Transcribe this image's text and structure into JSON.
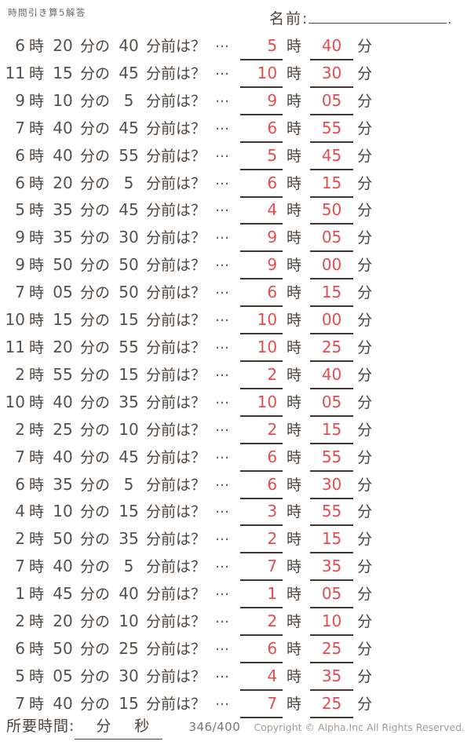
{
  "header": {
    "title": "時間引き算5解答",
    "name_label": "名前:",
    "name_suffix": "."
  },
  "labels": {
    "hour": "時",
    "min_no": "分の",
    "before": "分前は？",
    "ellipsis": "…",
    "minute": "分"
  },
  "colors": {
    "answer_red": "#e64b4e",
    "text_dark": "#4c443e",
    "line_dark": "#3e3731"
  },
  "problems": [
    {
      "h": "6",
      "m": "20",
      "d": "40",
      "ah": "5",
      "am": "40"
    },
    {
      "h": "11",
      "m": "15",
      "d": "45",
      "ah": "10",
      "am": "30"
    },
    {
      "h": "9",
      "m": "10",
      "d": "5",
      "ah": "9",
      "am": "05"
    },
    {
      "h": "7",
      "m": "40",
      "d": "45",
      "ah": "6",
      "am": "55"
    },
    {
      "h": "6",
      "m": "40",
      "d": "55",
      "ah": "5",
      "am": "45"
    },
    {
      "h": "6",
      "m": "20",
      "d": "5",
      "ah": "6",
      "am": "15"
    },
    {
      "h": "5",
      "m": "35",
      "d": "45",
      "ah": "4",
      "am": "50"
    },
    {
      "h": "9",
      "m": "35",
      "d": "30",
      "ah": "9",
      "am": "05"
    },
    {
      "h": "9",
      "m": "50",
      "d": "50",
      "ah": "9",
      "am": "00"
    },
    {
      "h": "7",
      "m": "05",
      "d": "50",
      "ah": "6",
      "am": "15"
    },
    {
      "h": "10",
      "m": "15",
      "d": "15",
      "ah": "10",
      "am": "00"
    },
    {
      "h": "11",
      "m": "20",
      "d": "55",
      "ah": "10",
      "am": "25"
    },
    {
      "h": "2",
      "m": "55",
      "d": "15",
      "ah": "2",
      "am": "40"
    },
    {
      "h": "10",
      "m": "40",
      "d": "35",
      "ah": "10",
      "am": "05"
    },
    {
      "h": "2",
      "m": "25",
      "d": "10",
      "ah": "2",
      "am": "15"
    },
    {
      "h": "7",
      "m": "40",
      "d": "45",
      "ah": "6",
      "am": "55"
    },
    {
      "h": "6",
      "m": "35",
      "d": "5",
      "ah": "6",
      "am": "30"
    },
    {
      "h": "4",
      "m": "10",
      "d": "15",
      "ah": "3",
      "am": "55"
    },
    {
      "h": "2",
      "m": "50",
      "d": "35",
      "ah": "2",
      "am": "15"
    },
    {
      "h": "7",
      "m": "40",
      "d": "5",
      "ah": "7",
      "am": "35"
    },
    {
      "h": "1",
      "m": "45",
      "d": "40",
      "ah": "1",
      "am": "05"
    },
    {
      "h": "2",
      "m": "20",
      "d": "10",
      "ah": "2",
      "am": "10"
    },
    {
      "h": "6",
      "m": "50",
      "d": "25",
      "ah": "6",
      "am": "25"
    },
    {
      "h": "5",
      "m": "05",
      "d": "30",
      "ah": "4",
      "am": "35"
    },
    {
      "h": "7",
      "m": "40",
      "d": "15",
      "ah": "7",
      "am": "25"
    }
  ],
  "footer": {
    "time_label": "所要時間:",
    "min_label": "分",
    "sec_label": "秒",
    "page": "346/400",
    "copyright": "Copyright © Alpha.Inc All Rights Reserved."
  }
}
